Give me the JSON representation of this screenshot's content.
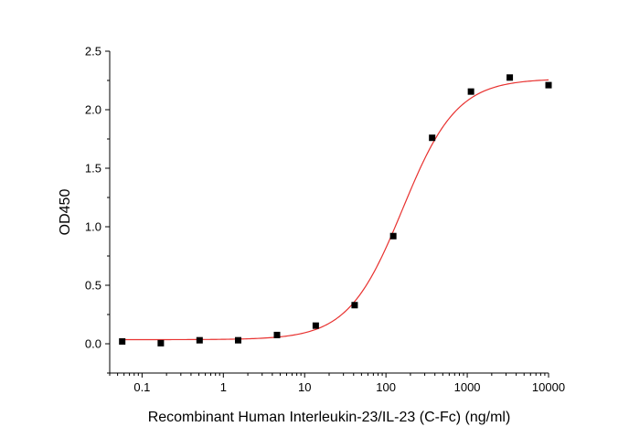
{
  "chart_data": {
    "type": "scatter",
    "xlabel": "Recombinant Human Interleukin-23/IL-23 (C-Fc) (ng/ml)",
    "ylabel": "OD450",
    "xscale": "log",
    "xlim": [
      0.04,
      10000
    ],
    "ylim": [
      -0.25,
      2.5
    ],
    "x_ticks": [
      0.1,
      1,
      10,
      100,
      1000,
      10000
    ],
    "x_tick_labels": [
      "0.1",
      "1",
      "10",
      "100",
      "1000",
      "10000"
    ],
    "y_ticks": [
      0.0,
      0.5,
      1.0,
      1.5,
      2.0,
      2.5
    ],
    "y_tick_labels": [
      "0.0",
      "0.5",
      "1.0",
      "1.5",
      "2.0",
      "2.5"
    ],
    "grid": false,
    "legend": "none",
    "series": [
      {
        "x": [
          0.057,
          0.17,
          0.51,
          1.52,
          4.57,
          13.7,
          41.2,
          123,
          370,
          1111,
          3333,
          10000
        ],
        "y": [
          0.02,
          0.005,
          0.03,
          0.03,
          0.075,
          0.155,
          0.33,
          0.92,
          1.76,
          2.155,
          2.275,
          2.21
        ],
        "marker": "square",
        "color": "#000000"
      }
    ],
    "fit_curve": {
      "model": "4PL",
      "bottom": 0.035,
      "top": 2.265,
      "ec50": 160,
      "hill": 1.3,
      "color": "#e8312f"
    }
  }
}
